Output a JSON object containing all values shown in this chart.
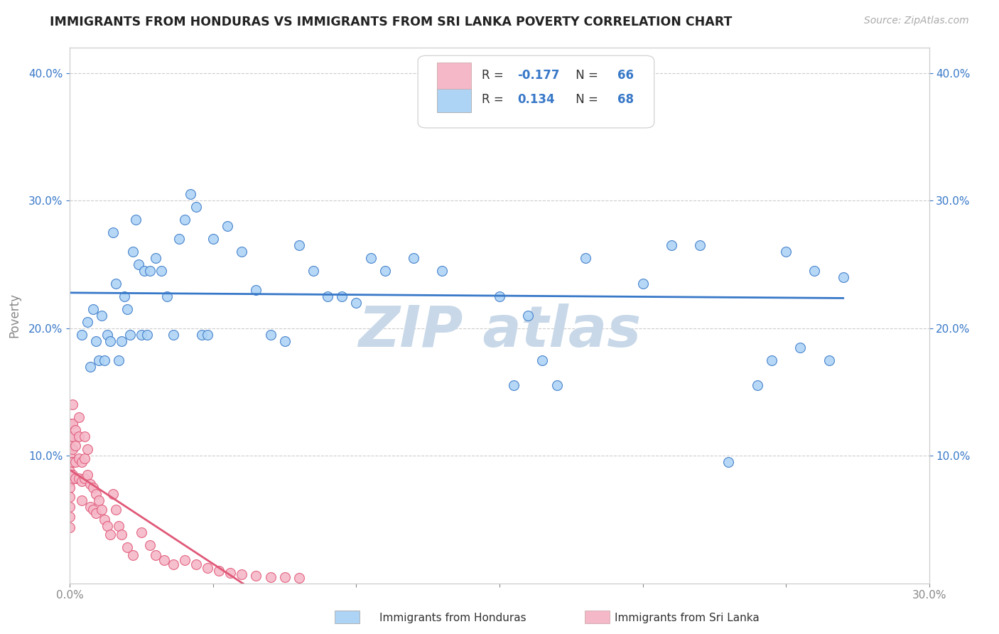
{
  "title": "IMMIGRANTS FROM HONDURAS VS IMMIGRANTS FROM SRI LANKA POVERTY CORRELATION CHART",
  "source": "Source: ZipAtlas.com",
  "ylabel": "Poverty",
  "xlabel_honduras": "Immigrants from Honduras",
  "xlabel_srilanka": "Immigrants from Sri Lanka",
  "xlim": [
    0.0,
    0.3
  ],
  "ylim": [
    0.0,
    0.42
  ],
  "xticks": [
    0.0,
    0.05,
    0.1,
    0.15,
    0.2,
    0.25,
    0.3
  ],
  "xticklabels": [
    "0.0%",
    "",
    "",
    "",
    "",
    "",
    "30.0%"
  ],
  "yticks": [
    0.1,
    0.2,
    0.3,
    0.4
  ],
  "yticklabels_left": [
    "10.0%",
    "20.0%",
    "30.0%",
    "40.0%"
  ],
  "yticklabels_right": [
    "10.0%",
    "20.0%",
    "30.0%",
    "40.0%"
  ],
  "R_honduras": 0.134,
  "N_honduras": 68,
  "R_srilanka": -0.177,
  "N_srilanka": 66,
  "color_honduras": "#aed4f5",
  "color_srilanka": "#f5b8c8",
  "line_color_honduras": "#3878c8",
  "line_color_srilanka": "#e05878",
  "background_color": "#ffffff",
  "watermark_text": "ZIP atlas",
  "watermark_color": "#c8d8e8",
  "grid_color": "#cccccc",
  "spine_color": "#cccccc",
  "tick_color": "#888888",
  "title_color": "#222222",
  "source_color": "#aaaaaa"
}
